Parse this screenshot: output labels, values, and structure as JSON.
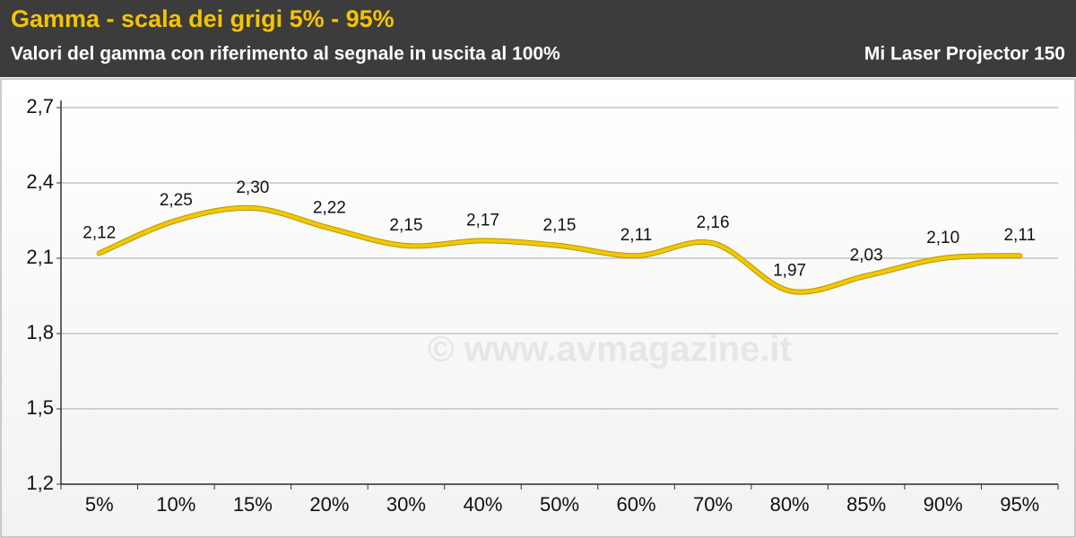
{
  "chart_data": {
    "type": "line",
    "title": "Gamma - scala dei grigi 5% - 95%",
    "subtitle": "Valori del gamma con riferimento al segnale in uscita al 100%",
    "device": "Mi Laser Projector 150",
    "watermark": "© www.avmagazine.it",
    "categories": [
      "5%",
      "10%",
      "15%",
      "20%",
      "30%",
      "40%",
      "50%",
      "60%",
      "70%",
      "80%",
      "85%",
      "90%",
      "95%"
    ],
    "series": [
      {
        "name": "Gamma",
        "color": "#f2c800",
        "values": [
          2.12,
          2.25,
          2.3,
          2.22,
          2.15,
          2.17,
          2.15,
          2.11,
          2.16,
          1.97,
          2.03,
          2.1,
          2.11
        ],
        "value_labels": [
          "2,12",
          "2,25",
          "2,30",
          "2,22",
          "2,15",
          "2,17",
          "2,15",
          "2,11",
          "2,16",
          "1,97",
          "2,03",
          "2,10",
          "2,11"
        ]
      }
    ],
    "ylim": [
      1.2,
      2.7
    ],
    "yticks": [
      {
        "value": 1.2,
        "label": "1,2"
      },
      {
        "value": 1.5,
        "label": "1,5"
      },
      {
        "value": 1.8,
        "label": "1,8"
      },
      {
        "value": 2.1,
        "label": "2,1"
      },
      {
        "value": 2.4,
        "label": "2,4"
      },
      {
        "value": 2.7,
        "label": "2,7"
      }
    ],
    "grid": true
  }
}
